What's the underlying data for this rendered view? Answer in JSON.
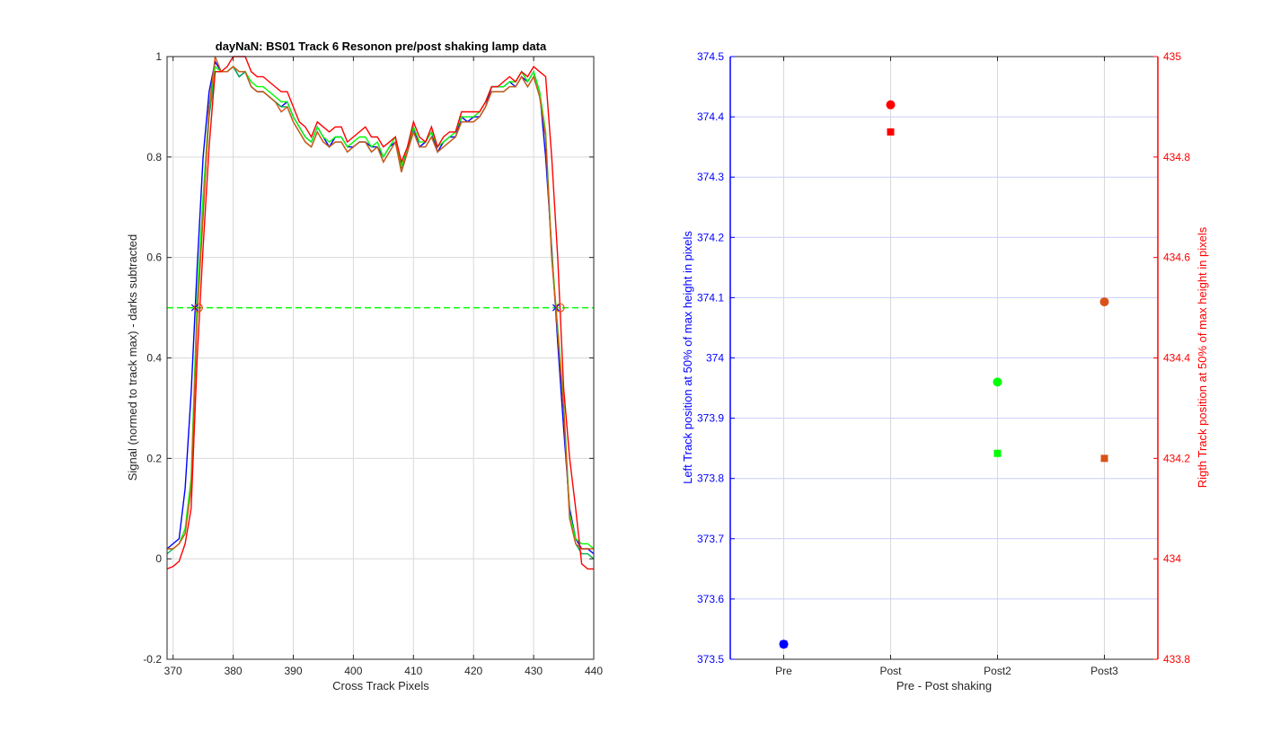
{
  "chart_data": [
    {
      "type": "line",
      "title": "dayNaN: BS01  Track 6 Resonon pre/post shaking lamp data",
      "xlabel": "Cross Track Pixels",
      "ylabel": "Signal (normed to track max) - darks subtracted",
      "xlim": [
        369,
        440
      ],
      "ylim": [
        -0.2,
        1
      ],
      "xticks": [
        370,
        380,
        390,
        400,
        410,
        420,
        430,
        440
      ],
      "yticks": [
        -0.2,
        0,
        0.2,
        0.4,
        0.6,
        0.8,
        1
      ],
      "ytick_labels": [
        "-0.2",
        "0",
        "0.2",
        "0.4",
        "0.6",
        "0.8",
        "1"
      ],
      "grid": true,
      "x": [
        369,
        370,
        371,
        372,
        373,
        374,
        375,
        376,
        377,
        378,
        379,
        380,
        381,
        382,
        383,
        384,
        385,
        386,
        387,
        388,
        389,
        390,
        391,
        392,
        393,
        394,
        395,
        396,
        397,
        398,
        399,
        400,
        401,
        402,
        403,
        404,
        405,
        406,
        407,
        408,
        409,
        410,
        411,
        412,
        413,
        414,
        415,
        416,
        417,
        418,
        419,
        420,
        421,
        422,
        423,
        424,
        425,
        426,
        427,
        428,
        429,
        430,
        431,
        432,
        433,
        434,
        435,
        436,
        437,
        438,
        439,
        440
      ],
      "series": [
        {
          "color": "#0000ff",
          "values": [
            0.02,
            0.03,
            0.04,
            0.14,
            0.33,
            0.58,
            0.8,
            0.93,
            0.99,
            0.97,
            0.97,
            0.98,
            0.96,
            0.97,
            0.94,
            0.93,
            0.93,
            0.92,
            0.91,
            0.9,
            0.91,
            0.88,
            0.86,
            0.84,
            0.83,
            0.86,
            0.84,
            0.82,
            0.84,
            0.84,
            0.82,
            0.82,
            0.83,
            0.83,
            0.82,
            0.82,
            0.8,
            0.82,
            0.83,
            0.78,
            0.81,
            0.86,
            0.82,
            0.83,
            0.85,
            0.81,
            0.83,
            0.84,
            0.84,
            0.88,
            0.87,
            0.88,
            0.88,
            0.9,
            0.94,
            0.94,
            0.94,
            0.95,
            0.94,
            0.96,
            0.95,
            0.97,
            0.93,
            0.8,
            0.62,
            0.43,
            0.26,
            0.1,
            0.04,
            0.02,
            0.02,
            0.01
          ]
        },
        {
          "color": "#00b050",
          "values": [
            0.01,
            0.02,
            0.03,
            0.05,
            0.15,
            0.5,
            0.7,
            0.88,
            0.97,
            0.97,
            0.97,
            0.98,
            0.96,
            0.97,
            0.94,
            0.93,
            0.93,
            0.92,
            0.91,
            0.9,
            0.9,
            0.87,
            0.85,
            0.83,
            0.82,
            0.85,
            0.83,
            0.82,
            0.83,
            0.83,
            0.81,
            0.82,
            0.83,
            0.83,
            0.81,
            0.82,
            0.79,
            0.81,
            0.83,
            0.77,
            0.81,
            0.85,
            0.82,
            0.82,
            0.84,
            0.81,
            0.82,
            0.83,
            0.84,
            0.87,
            0.87,
            0.87,
            0.88,
            0.9,
            0.93,
            0.93,
            0.93,
            0.94,
            0.94,
            0.96,
            0.94,
            0.96,
            0.92,
            0.84,
            0.6,
            0.45,
            0.3,
            0.08,
            0.03,
            0.01,
            0.01,
            0.0
          ]
        },
        {
          "color": "#00ff00",
          "values": [
            0.02,
            0.02,
            0.03,
            0.06,
            0.16,
            0.52,
            0.72,
            0.9,
            0.98,
            0.97,
            0.97,
            0.98,
            0.97,
            0.97,
            0.95,
            0.94,
            0.94,
            0.93,
            0.92,
            0.91,
            0.91,
            0.88,
            0.86,
            0.84,
            0.83,
            0.86,
            0.84,
            0.83,
            0.84,
            0.84,
            0.82,
            0.83,
            0.84,
            0.84,
            0.82,
            0.83,
            0.8,
            0.82,
            0.84,
            0.78,
            0.82,
            0.86,
            0.83,
            0.83,
            0.85,
            0.82,
            0.83,
            0.84,
            0.85,
            0.88,
            0.88,
            0.88,
            0.89,
            0.91,
            0.94,
            0.94,
            0.94,
            0.95,
            0.95,
            0.97,
            0.95,
            0.97,
            0.93,
            0.85,
            0.61,
            0.46,
            0.31,
            0.09,
            0.04,
            0.03,
            0.03,
            0.02
          ]
        },
        {
          "color": "#d95319",
          "values": [
            0.02,
            0.02,
            0.03,
            0.05,
            0.14,
            0.48,
            0.68,
            0.9,
            1.0,
            0.97,
            0.97,
            0.98,
            0.97,
            0.97,
            0.94,
            0.93,
            0.93,
            0.92,
            0.91,
            0.89,
            0.9,
            0.87,
            0.85,
            0.83,
            0.82,
            0.85,
            0.83,
            0.82,
            0.83,
            0.83,
            0.81,
            0.82,
            0.83,
            0.83,
            0.81,
            0.82,
            0.79,
            0.81,
            0.83,
            0.77,
            0.81,
            0.85,
            0.82,
            0.82,
            0.84,
            0.81,
            0.82,
            0.83,
            0.84,
            0.87,
            0.87,
            0.87,
            0.88,
            0.9,
            0.93,
            0.93,
            0.93,
            0.94,
            0.94,
            0.96,
            0.94,
            0.96,
            0.92,
            0.84,
            0.6,
            0.45,
            0.3,
            0.08,
            0.03,
            0.02,
            0.02,
            0.02
          ]
        },
        {
          "color": "#ff0000",
          "values": [
            -0.02,
            -0.015,
            -0.005,
            0.03,
            0.1,
            0.4,
            0.62,
            0.82,
            0.97,
            0.97,
            0.98,
            1.0,
            1.0,
            1.0,
            0.97,
            0.96,
            0.96,
            0.95,
            0.94,
            0.93,
            0.93,
            0.9,
            0.87,
            0.86,
            0.84,
            0.87,
            0.86,
            0.85,
            0.86,
            0.86,
            0.83,
            0.84,
            0.85,
            0.86,
            0.84,
            0.84,
            0.82,
            0.83,
            0.84,
            0.79,
            0.82,
            0.87,
            0.84,
            0.83,
            0.86,
            0.82,
            0.84,
            0.85,
            0.85,
            0.89,
            0.89,
            0.89,
            0.89,
            0.91,
            0.94,
            0.94,
            0.95,
            0.96,
            0.95,
            0.97,
            0.96,
            0.98,
            0.97,
            0.96,
            0.8,
            0.6,
            0.34,
            0.2,
            0.1,
            -0.01,
            -0.02,
            -0.02
          ]
        }
      ],
      "reference_line": {
        "y": 0.5,
        "color": "#00ff00",
        "style": "dashed"
      },
      "half_max_markers": [
        {
          "x": 373.6,
          "y": 0.5,
          "color": "#0000ff",
          "shape": "cross"
        },
        {
          "x": 374.2,
          "y": 0.5,
          "color": "#d95319",
          "shape": "circle"
        },
        {
          "x": 433.7,
          "y": 0.5,
          "color": "#0000ff",
          "shape": "cross"
        },
        {
          "x": 434.4,
          "y": 0.5,
          "color": "#d95319",
          "shape": "circle"
        }
      ]
    },
    {
      "type": "scatter",
      "xlabel": "Pre - Post shaking",
      "categories": [
        "Pre",
        "Post",
        "Post2",
        "Post3"
      ],
      "left_axis": {
        "label": "Left Track position at 50% of max height in pixels",
        "color": "#0000ff",
        "ylim": [
          373.5,
          374.5
        ],
        "ticks": [
          373.5,
          373.6,
          373.7,
          373.8,
          373.9,
          374.0,
          374.1,
          374.2,
          374.3,
          374.4,
          374.5
        ],
        "tick_labels": [
          "373.5",
          "373.6",
          "373.7",
          "373.8",
          "373.9",
          "374",
          "374.1",
          "374.2",
          "374.3",
          "374.4",
          "374.5"
        ]
      },
      "right_axis": {
        "label": "Rigth Track position at 50% of max height in pixels",
        "color": "#ff0000",
        "ylim": [
          433.8,
          435.0
        ],
        "ticks": [
          433.8,
          434.0,
          434.2,
          434.4,
          434.6,
          434.8,
          435.0
        ],
        "tick_labels": [
          "433.8",
          "434",
          "434.2",
          "434.4",
          "434.6",
          "434.8",
          "435"
        ]
      },
      "grid": true,
      "points": [
        {
          "category": "Pre",
          "axis": "left",
          "value": 373.525,
          "color": "#0000ff",
          "shape": "circle"
        },
        {
          "category": "Pre",
          "axis": "right",
          "value": 433.83,
          "color": "#0000ff",
          "shape": "square"
        },
        {
          "category": "Post",
          "axis": "left",
          "value": 374.42,
          "color": "#ff0000",
          "shape": "circle"
        },
        {
          "category": "Post",
          "axis": "right",
          "value": 434.85,
          "color": "#ff0000",
          "shape": "square"
        },
        {
          "category": "Post2",
          "axis": "left",
          "value": 373.96,
          "color": "#00ff00",
          "shape": "circle"
        },
        {
          "category": "Post2",
          "axis": "right",
          "value": 434.21,
          "color": "#00ff00",
          "shape": "square"
        },
        {
          "category": "Post3",
          "axis": "left",
          "value": 374.093,
          "color": "#d95319",
          "shape": "circle"
        },
        {
          "category": "Post3",
          "axis": "right",
          "value": 434.2,
          "color": "#d95319",
          "shape": "square"
        }
      ]
    }
  ]
}
